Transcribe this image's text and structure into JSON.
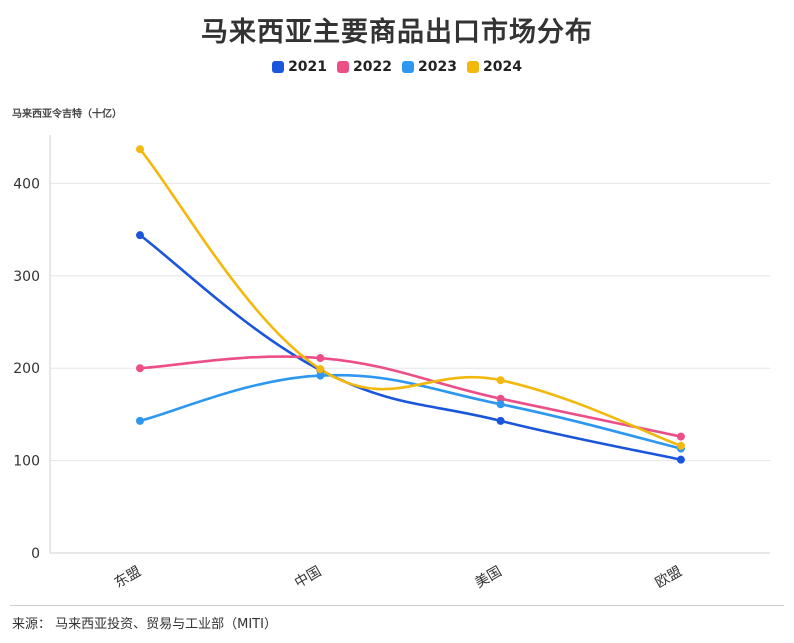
{
  "title": "马来西亚主要商品出口市场分布",
  "y_unit": "马来西亚令吉特（十亿）",
  "source": "来源： 马来西亚投资、贸易与工业部（MITI）",
  "chart_data": {
    "type": "line",
    "title": "马来西亚主要商品出口市场分布",
    "ylabel": "马来西亚令吉特（十亿）",
    "xlabel": "",
    "categories": [
      "东盟",
      "中国",
      "美国",
      "欧盟"
    ],
    "ylim": [
      0,
      450
    ],
    "yticks": [
      0,
      100,
      200,
      300,
      400
    ],
    "grid": true,
    "legend_position": "top-center",
    "series": [
      {
        "name": "2021",
        "color": "#1a56db",
        "values": [
          344,
          198,
          143,
          101
        ]
      },
      {
        "name": "2022",
        "color": "#ec4f87",
        "values": [
          200,
          211,
          167,
          126
        ]
      },
      {
        "name": "2023",
        "color": "#2e97f0",
        "values": [
          143,
          192,
          161,
          113
        ]
      },
      {
        "name": "2024",
        "color": "#f2b90c",
        "values": [
          437,
          199,
          187,
          116
        ]
      }
    ]
  }
}
